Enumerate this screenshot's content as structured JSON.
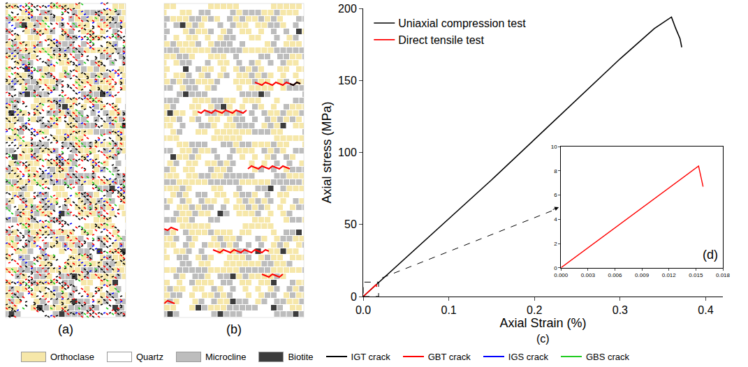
{
  "panels": {
    "a": "(a)",
    "b": "(b)"
  },
  "legend_items": {
    "minerals": [
      {
        "name": "Orthoclase",
        "color": "#f6e7a9"
      },
      {
        "name": "Quartz",
        "color": "#ffffff"
      },
      {
        "name": "Microcline",
        "color": "#bdbdbd"
      },
      {
        "name": "Biotite",
        "color": "#3c3c3c"
      }
    ],
    "cracks": [
      {
        "name": "IGT crack",
        "color": "#000000"
      },
      {
        "name": "GBT crack",
        "color": "#ff0000"
      },
      {
        "name": "IGS crack",
        "color": "#0000ff"
      },
      {
        "name": "GBS crack",
        "color": "#22cc22"
      }
    ]
  },
  "chart_data": [
    {
      "type": "line",
      "label": "(c)",
      "x_label": "Axial Strain (%)",
      "y_label": "Axial stress (MPa)",
      "xlim": [
        0,
        0.42
      ],
      "ylim": [
        0,
        200
      ],
      "xticks": [
        {
          "value": 0,
          "label": "0.0"
        },
        0.1,
        0.2,
        0.3,
        0.4
      ],
      "yticks": [
        0,
        50,
        100,
        150,
        200
      ],
      "grid": false,
      "legend": "upper left",
      "series": [
        {
          "name": "Uniaxial compression test",
          "color": "#000000",
          "x": [
            0,
            0.05,
            0.1,
            0.15,
            0.2,
            0.25,
            0.3,
            0.34,
            0.355,
            0.36,
            0.365,
            0.37,
            0.372
          ],
          "values": [
            0,
            27,
            54,
            81,
            109,
            137,
            165,
            186,
            192,
            194,
            186,
            179,
            173
          ]
        },
        {
          "name": "Direct tensile test",
          "color": "#ff0000",
          "x": [
            0,
            0.015,
            0.0153,
            0.0158
          ],
          "values": [
            0,
            8.25,
            8.4,
            6.7
          ]
        }
      ]
    },
    {
      "type": "line",
      "label": "(d)",
      "xlim": [
        0,
        0.018
      ],
      "ylim": [
        0,
        10
      ],
      "xticks": [
        {
          "value": 0,
          "label": "0.000"
        },
        {
          "value": 0.003,
          "label": "0.003"
        },
        {
          "value": 0.006,
          "label": "0.006"
        },
        {
          "value": 0.009,
          "label": "0.009"
        },
        {
          "value": 0.012,
          "label": "0.012"
        },
        {
          "value": 0.015,
          "label": "0.015"
        },
        {
          "value": 0.018,
          "label": "0.018"
        }
      ],
      "yticks": [
        0,
        2,
        4,
        6,
        8,
        10
      ],
      "grid": false,
      "series": [
        {
          "name": "Direct tensile test",
          "color": "#ff0000",
          "x": [
            0,
            0.015,
            0.0153,
            0.0158
          ],
          "values": [
            0,
            8.25,
            8.4,
            6.7
          ]
        }
      ]
    }
  ]
}
